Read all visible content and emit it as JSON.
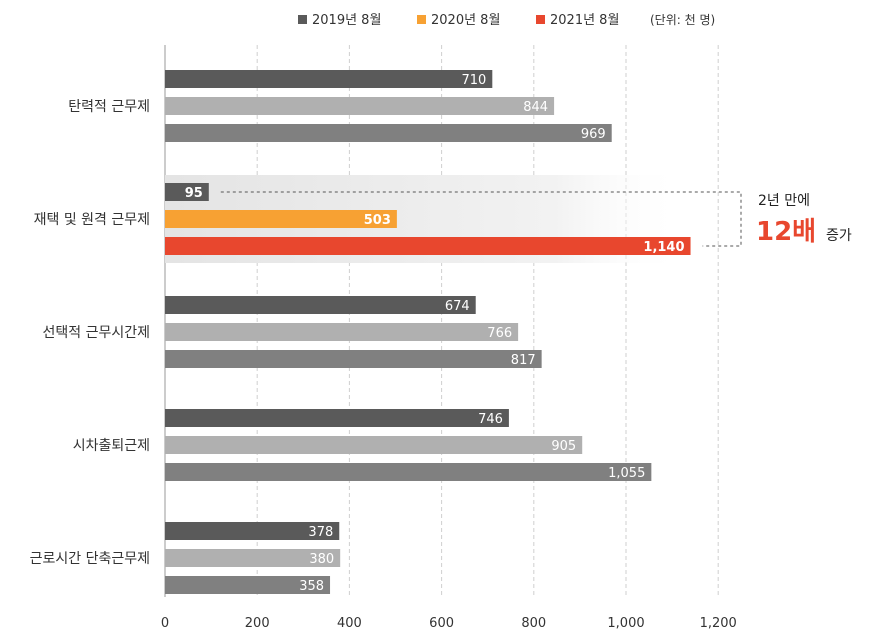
{
  "chart_data": {
    "type": "bar",
    "orientation": "horizontal",
    "categories": [
      "탄력적 근무제",
      "재택 및 원격 근무제",
      "선택적 근무시간제",
      "시차출퇴근제",
      "근로시간 단축근무제"
    ],
    "series": [
      {
        "name": "2019년 8월",
        "values": [
          710,
          95,
          674,
          746,
          378
        ],
        "labels": [
          "710",
          "95",
          "674",
          "746",
          "378"
        ]
      },
      {
        "name": "2020년 8월",
        "values": [
          844,
          503,
          766,
          905,
          380
        ],
        "labels": [
          "844",
          "503",
          "766",
          "905",
          "380"
        ]
      },
      {
        "name": "2021년 8월",
        "values": [
          969,
          1140,
          817,
          1055,
          358
        ],
        "labels": [
          "969",
          "1,140",
          "817",
          "1,055",
          "358"
        ]
      }
    ],
    "unit_note": "(단위: 천 명)",
    "xlim": [
      0,
      1200
    ],
    "ticks": [
      0,
      200,
      400,
      600,
      800,
      1000,
      1200
    ],
    "tick_labels": [
      "0",
      "200",
      "400",
      "600",
      "800",
      "1,000",
      "1,200"
    ],
    "grid": true,
    "legend_position": "top",
    "highlight_category": "재택 및 원격 근무제",
    "annotation": {
      "line1": "2년 만에",
      "big": "12배",
      "suffix": "증가"
    },
    "colors": {
      "normal": [
        "#5a5a5a",
        "#b0b0b0",
        "#808080"
      ],
      "highlight": [
        "#5a5a5a",
        "#f7a133",
        "#e8472e"
      ],
      "legend": [
        "#5a5a5a",
        "#f7a133",
        "#e8472e"
      ]
    }
  }
}
